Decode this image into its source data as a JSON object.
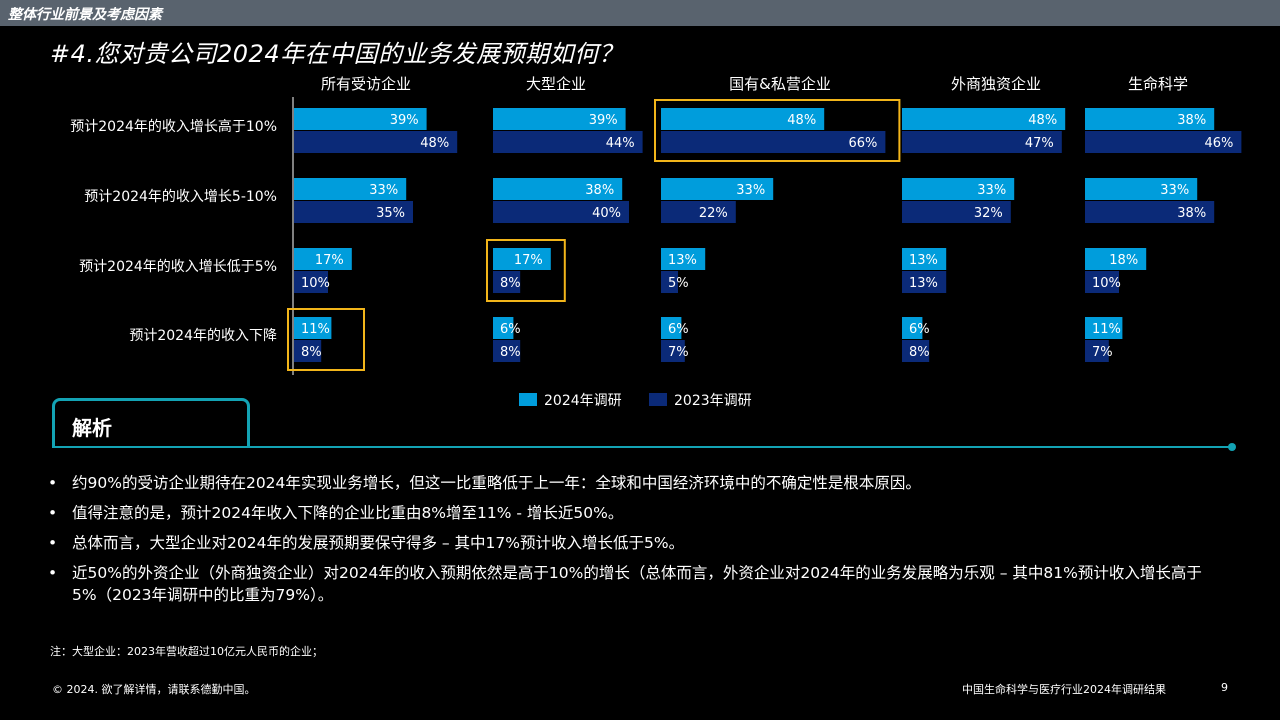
{
  "header": {
    "section": "整体行业前景及考虑因素"
  },
  "title": "#4.您对贵公司2024年在中国的业务发展预期如何？",
  "chart_data": {
    "type": "bar",
    "orientation": "horizontal",
    "panels": [
      "所有受访企业",
      "大型企业",
      "国有&私营企业",
      "外商独资企业",
      "生命科学"
    ],
    "categories": [
      "预计2024年的收入增长高于10%",
      "预计2024年的收入增长5-10%",
      "预计2024年的收入增长低于5%",
      "预计2024年的收入下降"
    ],
    "series": [
      {
        "name": "2024年调研",
        "color": "#009ddc",
        "values": [
          [
            39,
            33,
            17,
            11
          ],
          [
            39,
            38,
            17,
            6
          ],
          [
            48,
            33,
            13,
            6
          ],
          [
            48,
            33,
            13,
            6
          ],
          [
            38,
            33,
            18,
            11
          ]
        ]
      },
      {
        "name": "2023年调研",
        "color": "#0b2a78",
        "values": [
          [
            48,
            35,
            10,
            8
          ],
          [
            44,
            40,
            8,
            8
          ],
          [
            66,
            22,
            5,
            7
          ],
          [
            47,
            32,
            13,
            8
          ],
          [
            46,
            38,
            10,
            7
          ]
        ]
      }
    ],
    "value_suffix": "%",
    "highlight_color": "#f2b51a",
    "highlights": [
      {
        "panel": 2,
        "category": 0
      },
      {
        "panel": 1,
        "category": 2
      },
      {
        "panel": 0,
        "category": 3
      }
    ],
    "legend_position": "bottom-center"
  },
  "analysis": {
    "title": "解析",
    "bullet_symbol": "•",
    "bullets": [
      "约90%的受访企业期待在2024年实现业务增长，但这一比重略低于上一年：全球和中国经济环境中的不确定性是根本原因。",
      "值得注意的是，预计2024年收入下降的企业比重由8%增至11% - 增长近50%。",
      "总体而言，大型企业对2024年的发展预期要保守得多 – 其中17%预计收入增长低于5%。",
      "近50%的外资企业（外商独资企业）对2024年的收入预期依然是高于10%的增长（总体而言，外资企业对2024年的业务发展略为乐观 – 其中81%预计收入增长高于5%（2023年调研中的比重为79%）。"
    ],
    "accent_color": "#13a3b4"
  },
  "note": "注：大型企业：2023年营收超过10亿元人民币的企业；",
  "footer": {
    "copyright": "© 2024. 欲了解详情，请联系德勤中国。",
    "report": "中国生命科学与医疗行业2024年调研结果",
    "page": "9"
  }
}
